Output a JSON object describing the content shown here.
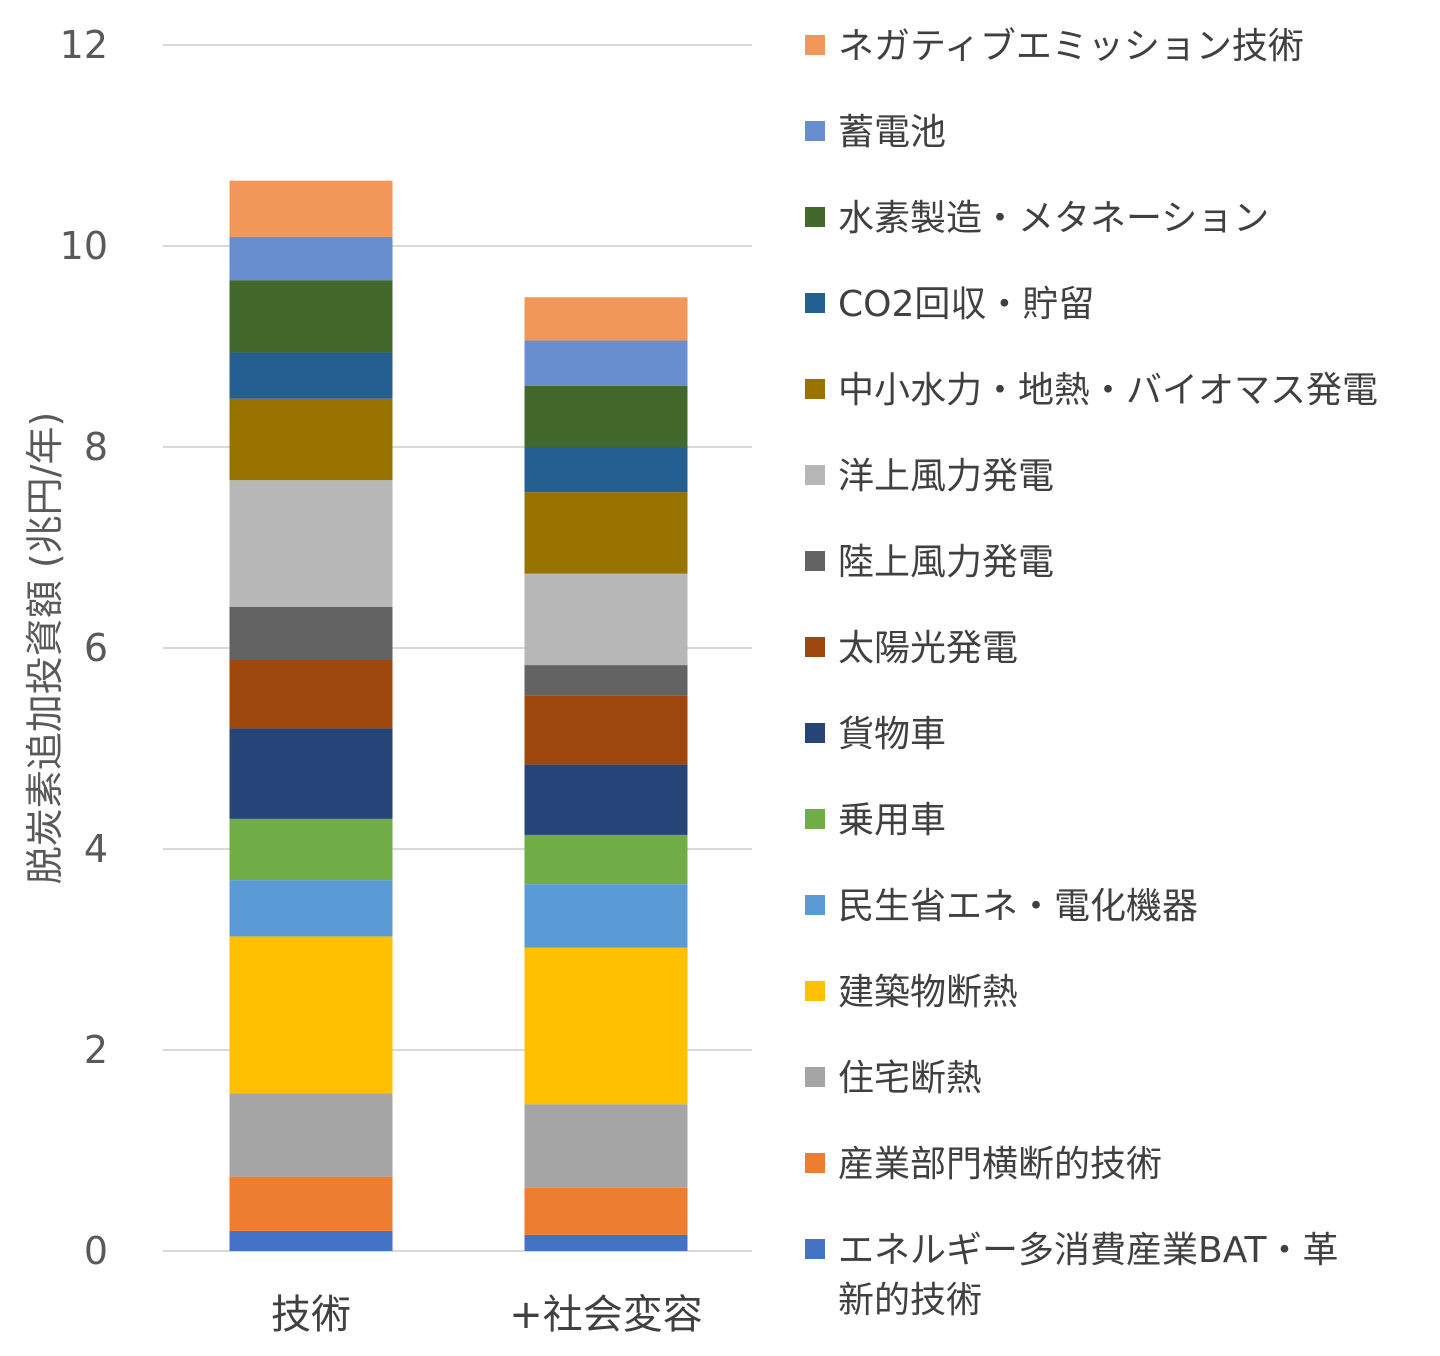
{
  "chart_data": {
    "type": "bar",
    "stacked": true,
    "ylabel": "脱炭素追加投資額 (兆円/年)",
    "xlabel": "",
    "ylim": [
      0,
      12
    ],
    "yticks": [
      "0",
      "2",
      "4",
      "6",
      "8",
      "10",
      "12"
    ],
    "grid": true,
    "legend_position": "right",
    "categories": [
      "技術",
      "+社会変容"
    ],
    "series": [
      {
        "name": "エネルギー多消費産業BAT・革新的技術",
        "color": "#4472C4",
        "values": [
          0.2,
          0.16
        ]
      },
      {
        "name": "産業部門横断的技術",
        "color": "#ED7D31",
        "values": [
          0.54,
          0.47
        ]
      },
      {
        "name": "住宅断熱",
        "color": "#A5A5A5",
        "values": [
          0.83,
          0.83
        ]
      },
      {
        "name": "建築物断熱",
        "color": "#FFC000",
        "values": [
          1.56,
          1.56
        ]
      },
      {
        "name": "民生省エネ・電化機器",
        "color": "#5B9BD5",
        "values": [
          0.56,
          0.63
        ]
      },
      {
        "name": "乗用車",
        "color": "#70AD47",
        "values": [
          0.61,
          0.49
        ]
      },
      {
        "name": "貨物車",
        "color": "#264478",
        "values": [
          0.9,
          0.7
        ]
      },
      {
        "name": "太陽光発電",
        "color": "#9E480E",
        "values": [
          0.69,
          0.69
        ]
      },
      {
        "name": "陸上風力発電",
        "color": "#636363",
        "values": [
          0.52,
          0.3
        ]
      },
      {
        "name": "洋上風力発電",
        "color": "#B7B7B7",
        "values": [
          1.26,
          0.91
        ]
      },
      {
        "name": "中小水力・地熱・バイオマス発電",
        "color": "#997300",
        "values": [
          0.81,
          0.81
        ]
      },
      {
        "name": "CO2回収・貯留",
        "color": "#255E91",
        "values": [
          0.46,
          0.45
        ]
      },
      {
        "name": "水素製造・メタネーション",
        "color": "#43682B",
        "values": [
          0.72,
          0.61
        ]
      },
      {
        "name": "蓄電池",
        "color": "#698ED0",
        "values": [
          0.43,
          0.45
        ]
      },
      {
        "name": "ネガティブエミッション技術",
        "color": "#F1975A",
        "values": [
          0.56,
          0.43
        ]
      }
    ]
  }
}
